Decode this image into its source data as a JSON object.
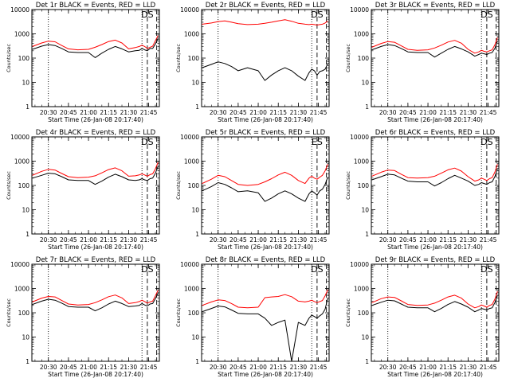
{
  "figure": {
    "x_tick_labels": [
      "20:30",
      "20:45",
      "21:00",
      "21:15",
      "21:30",
      "21:45"
    ],
    "y_tick_labels": [
      "1",
      "10",
      "100",
      "1000",
      "10000"
    ],
    "colors": {
      "events": "#000000",
      "lld": "#ff0000",
      "frame": "#000000"
    }
  },
  "chart_data": [
    {
      "type": "line",
      "title": "Det 1r BLACK = Events, RED = LLD",
      "xlabel": "Start Time (26-Jan-08 20:17:40)",
      "ylabel": "Counts/sec",
      "xlim": [
        "20:17:40",
        "21:53:00"
      ],
      "ylim": [
        1,
        10000
      ],
      "yscale": "log",
      "grid": false,
      "marker_dotted_time": [
        "20:30",
        "21:40"
      ],
      "marker_dashed_time": [
        "21:44",
        "21:51"
      ],
      "annotations": [
        "DS"
      ],
      "x": [
        "20:18",
        "20:25",
        "20:30",
        "20:35",
        "20:40",
        "20:45",
        "20:52",
        "21:00",
        "21:05",
        "21:10",
        "21:15",
        "21:20",
        "21:25",
        "21:30",
        "21:35",
        "21:38",
        "21:40",
        "21:42",
        "21:44",
        "21:46",
        "21:48",
        "21:50",
        "21:52"
      ],
      "series": [
        {
          "color": "black",
          "values": [
            230,
            310,
            360,
            330,
            250,
            180,
            170,
            170,
            105,
            160,
            230,
            300,
            240,
            180,
            200,
            210,
            250,
            220,
            200,
            250,
            250,
            380,
            650
          ]
        },
        {
          "color": "red",
          "values": [
            300,
            420,
            500,
            470,
            330,
            240,
            220,
            230,
            280,
            360,
            480,
            550,
            420,
            240,
            270,
            300,
            340,
            300,
            250,
            280,
            310,
            520,
            850
          ]
        }
      ]
    },
    {
      "type": "line",
      "title": "Det 2r BLACK = Events, RED = LLD",
      "xlabel": "Start Time (26-Jan-08 20:17:40)",
      "ylabel": "Counts/sec",
      "xlim": [
        "20:17:40",
        "21:53:00"
      ],
      "ylim": [
        1,
        10000
      ],
      "yscale": "log",
      "grid": false,
      "marker_dotted_time": [
        "20:30",
        "21:40"
      ],
      "marker_dashed_time": [
        "21:44",
        "21:51"
      ],
      "annotations": [
        "DS"
      ],
      "x": [
        "20:18",
        "20:25",
        "20:30",
        "20:35",
        "20:40",
        "20:45",
        "20:52",
        "21:00",
        "21:05",
        "21:10",
        "21:15",
        "21:20",
        "21:25",
        "21:30",
        "21:35",
        "21:38",
        "21:40",
        "21:42",
        "21:44",
        "21:46",
        "21:48",
        "21:50",
        "21:52"
      ],
      "series": [
        {
          "color": "black",
          "values": [
            40,
            55,
            70,
            60,
            45,
            30,
            40,
            30,
            12,
            20,
            30,
            40,
            30,
            18,
            12,
            25,
            35,
            30,
            20,
            28,
            30,
            35,
            60
          ]
        },
        {
          "color": "red",
          "values": [
            2500,
            2800,
            3200,
            3400,
            3000,
            2600,
            2400,
            2500,
            2700,
            3000,
            3400,
            3800,
            3300,
            2700,
            2500,
            2400,
            2500,
            2400,
            2300,
            2400,
            2500,
            2800,
            3400
          ]
        }
      ]
    },
    {
      "type": "line",
      "title": "Det 3r BLACK = Events, RED = LLD",
      "xlabel": "Start Time (26-Jan-08 20:17:40)",
      "ylabel": "Counts/sec",
      "xlim": [
        "20:17:40",
        "21:53:00"
      ],
      "ylim": [
        1,
        10000
      ],
      "yscale": "log",
      "grid": false,
      "marker_dotted_time": [
        "20:30",
        "21:40"
      ],
      "marker_dashed_time": [
        "21:44",
        "21:51"
      ],
      "annotations": [
        "DS"
      ],
      "x": [
        "20:18",
        "20:25",
        "20:30",
        "20:35",
        "20:40",
        "20:45",
        "20:52",
        "21:00",
        "21:05",
        "21:10",
        "21:15",
        "21:20",
        "21:25",
        "21:30",
        "21:35",
        "21:38",
        "21:40",
        "21:42",
        "21:44",
        "21:46",
        "21:48",
        "21:50",
        "21:52"
      ],
      "series": [
        {
          "color": "black",
          "values": [
            220,
            300,
            360,
            330,
            250,
            180,
            170,
            170,
            110,
            160,
            230,
            300,
            240,
            180,
            120,
            140,
            160,
            150,
            140,
            160,
            170,
            250,
            500
          ]
        },
        {
          "color": "red",
          "values": [
            280,
            400,
            480,
            450,
            320,
            230,
            210,
            220,
            260,
            340,
            460,
            540,
            410,
            230,
            160,
            180,
            210,
            190,
            180,
            200,
            220,
            350,
            700
          ]
        }
      ]
    },
    {
      "type": "line",
      "title": "Det 4r BLACK = Events, RED = LLD",
      "xlabel": "Start Time (26-Jan-08 20:17:40)",
      "ylabel": "Counts/sec",
      "xlim": [
        "20:17:40",
        "21:53:00"
      ],
      "ylim": [
        1,
        10000
      ],
      "yscale": "log",
      "grid": false,
      "marker_dotted_time": [
        "20:30",
        "21:40"
      ],
      "marker_dashed_time": [
        "21:44",
        "21:51"
      ],
      "annotations": [
        "DS"
      ],
      "x": [
        "20:18",
        "20:25",
        "20:30",
        "20:35",
        "20:40",
        "20:45",
        "20:52",
        "21:00",
        "21:05",
        "21:10",
        "21:15",
        "21:20",
        "21:25",
        "21:30",
        "21:35",
        "21:38",
        "21:40",
        "21:42",
        "21:44",
        "21:46",
        "21:48",
        "21:50",
        "21:52"
      ],
      "series": [
        {
          "color": "black",
          "values": [
            200,
            260,
            320,
            300,
            230,
            170,
            160,
            160,
            110,
            150,
            220,
            290,
            230,
            170,
            160,
            170,
            190,
            170,
            160,
            190,
            200,
            320,
            600
          ]
        },
        {
          "color": "red",
          "values": [
            260,
            380,
            460,
            430,
            310,
            230,
            210,
            220,
            250,
            330,
            450,
            530,
            400,
            240,
            250,
            270,
            300,
            270,
            240,
            280,
            300,
            480,
            900
          ]
        }
      ]
    },
    {
      "type": "line",
      "title": "Det 5r BLACK = Events, RED = LLD",
      "xlabel": "Start Time (26-Jan-08 20:17:40)",
      "ylabel": "Counts/sec",
      "xlim": [
        "20:17:40",
        "21:53:00"
      ],
      "ylim": [
        1,
        10000
      ],
      "yscale": "log",
      "grid": false,
      "marker_dotted_time": [
        "20:30",
        "21:40"
      ],
      "marker_dashed_time": [
        "21:44",
        "21:51"
      ],
      "annotations": [
        "ES"
      ],
      "x": [
        "20:18",
        "20:25",
        "20:30",
        "20:35",
        "20:40",
        "20:45",
        "20:52",
        "21:00",
        "21:05",
        "21:10",
        "21:15",
        "21:20",
        "21:25",
        "21:30",
        "21:35",
        "21:38",
        "21:40",
        "21:42",
        "21:44",
        "21:46",
        "21:48",
        "21:50",
        "21:52"
      ],
      "series": [
        {
          "color": "black",
          "values": [
            60,
            90,
            130,
            110,
            80,
            55,
            60,
            50,
            22,
            30,
            45,
            60,
            45,
            30,
            22,
            45,
            60,
            50,
            40,
            60,
            70,
            110,
            220
          ]
        },
        {
          "color": "red",
          "values": [
            120,
            180,
            260,
            230,
            160,
            110,
            100,
            110,
            140,
            190,
            270,
            350,
            260,
            160,
            120,
            200,
            240,
            200,
            180,
            220,
            260,
            400,
            750
          ]
        }
      ]
    },
    {
      "type": "line",
      "title": "Det 6r BLACK = Events, RED = LLD",
      "xlabel": "Start Time (26-Jan-08 20:17:40)",
      "ylabel": "Counts/sec",
      "xlim": [
        "20:17:40",
        "21:53:00"
      ],
      "ylim": [
        1,
        10000
      ],
      "yscale": "log",
      "grid": false,
      "marker_dotted_time": [
        "20:30",
        "21:40"
      ],
      "marker_dashed_time": [
        "21:44",
        "21:51"
      ],
      "annotations": [
        "DS"
      ],
      "x": [
        "20:18",
        "20:25",
        "20:30",
        "20:35",
        "20:40",
        "20:45",
        "20:52",
        "21:00",
        "21:05",
        "21:10",
        "21:15",
        "21:20",
        "21:25",
        "21:30",
        "21:35",
        "21:38",
        "21:40",
        "21:42",
        "21:44",
        "21:46",
        "21:48",
        "21:50",
        "21:52"
      ],
      "series": [
        {
          "color": "black",
          "values": [
            170,
            230,
            290,
            270,
            200,
            150,
            140,
            140,
            95,
            130,
            190,
            260,
            200,
            150,
            100,
            110,
            130,
            120,
            110,
            130,
            140,
            230,
            480
          ]
        },
        {
          "color": "red",
          "values": [
            240,
            350,
            430,
            410,
            290,
            210,
            200,
            210,
            240,
            320,
            440,
            520,
            390,
            230,
            150,
            170,
            200,
            180,
            160,
            190,
            210,
            350,
            750
          ]
        }
      ]
    },
    {
      "type": "line",
      "title": "Det 7r BLACK = Events, RED = LLD",
      "xlabel": "Start Time (26-Jan-08 20:17:40)",
      "ylabel": "Counts/sec",
      "xlim": [
        "20:17:40",
        "21:53:00"
      ],
      "ylim": [
        1,
        10000
      ],
      "yscale": "log",
      "grid": false,
      "marker_dotted_time": [
        "20:30",
        "21:40"
      ],
      "marker_dashed_time": [
        "21:44",
        "21:51"
      ],
      "annotations": [
        "DS"
      ],
      "x": [
        "20:18",
        "20:25",
        "20:30",
        "20:35",
        "20:40",
        "20:45",
        "20:52",
        "21:00",
        "21:05",
        "21:10",
        "21:15",
        "21:20",
        "21:25",
        "21:30",
        "21:35",
        "21:38",
        "21:40",
        "21:42",
        "21:44",
        "21:46",
        "21:48",
        "21:50",
        "21:52"
      ],
      "series": [
        {
          "color": "black",
          "values": [
            220,
            300,
            360,
            330,
            250,
            180,
            170,
            170,
            120,
            160,
            230,
            300,
            240,
            180,
            190,
            200,
            240,
            210,
            190,
            230,
            240,
            380,
            650
          ]
        },
        {
          "color": "red",
          "values": [
            280,
            400,
            470,
            450,
            320,
            230,
            210,
            220,
            260,
            340,
            460,
            540,
            410,
            240,
            260,
            290,
            330,
            290,
            250,
            280,
            300,
            500,
            850
          ]
        }
      ]
    },
    {
      "type": "line",
      "title": "Det 8r BLACK = Events, RED = LLD",
      "xlabel": "Start Time (26-Jan-08 20:17:40)",
      "ylabel": "Counts/sec",
      "xlim": [
        "20:17:40",
        "21:53:00"
      ],
      "ylim": [
        1,
        10000
      ],
      "yscale": "log",
      "grid": false,
      "marker_dotted_time": [
        "20:30",
        "21:40"
      ],
      "marker_dashed_time": [
        "21:44",
        "21:51"
      ],
      "annotations": [
        "DS"
      ],
      "x": [
        "20:18",
        "20:25",
        "20:30",
        "20:35",
        "20:40",
        "20:45",
        "20:52",
        "21:00",
        "21:05",
        "21:10",
        "21:15",
        "21:20",
        "21:25",
        "21:30",
        "21:35",
        "21:38",
        "21:40",
        "21:42",
        "21:44",
        "21:46",
        "21:48",
        "21:50",
        "21:52"
      ],
      "series": [
        {
          "color": "black",
          "values": [
            110,
            150,
            190,
            175,
            130,
            95,
            90,
            90,
            60,
            30,
            40,
            50,
            1,
            40,
            30,
            60,
            80,
            70,
            60,
            75,
            90,
            140,
            400
          ]
        },
        {
          "color": "red",
          "values": [
            200,
            280,
            340,
            320,
            240,
            170,
            160,
            170,
            420,
            450,
            470,
            560,
            460,
            300,
            280,
            300,
            330,
            290,
            260,
            290,
            320,
            500,
            900
          ]
        }
      ]
    },
    {
      "type": "line",
      "title": "Det 9r BLACK = Events, RED = LLD",
      "xlabel": "Start Time (26-Jan-08 20:17:40)",
      "ylabel": "Counts/sec",
      "xlim": [
        "20:17:40",
        "21:53:00"
      ],
      "ylim": [
        1,
        10000
      ],
      "yscale": "log",
      "grid": false,
      "marker_dotted_time": [
        "20:30",
        "21:40"
      ],
      "marker_dashed_time": [
        "21:44",
        "21:51"
      ],
      "annotations": [
        "DS"
      ],
      "x": [
        "20:18",
        "20:25",
        "20:30",
        "20:35",
        "20:40",
        "20:45",
        "20:52",
        "21:00",
        "21:05",
        "21:10",
        "21:15",
        "21:20",
        "21:25",
        "21:30",
        "21:35",
        "21:38",
        "21:40",
        "21:42",
        "21:44",
        "21:46",
        "21:48",
        "21:50",
        "21:52"
      ],
      "series": [
        {
          "color": "black",
          "values": [
            200,
            270,
            330,
            310,
            230,
            170,
            160,
            160,
            110,
            150,
            220,
            290,
            230,
            170,
            110,
            130,
            150,
            140,
            130,
            150,
            160,
            260,
            520
          ]
        },
        {
          "color": "red",
          "values": [
            260,
            380,
            450,
            430,
            310,
            220,
            200,
            210,
            250,
            330,
            450,
            530,
            400,
            230,
            160,
            180,
            210,
            190,
            170,
            200,
            220,
            360,
            760
          ]
        }
      ]
    }
  ]
}
